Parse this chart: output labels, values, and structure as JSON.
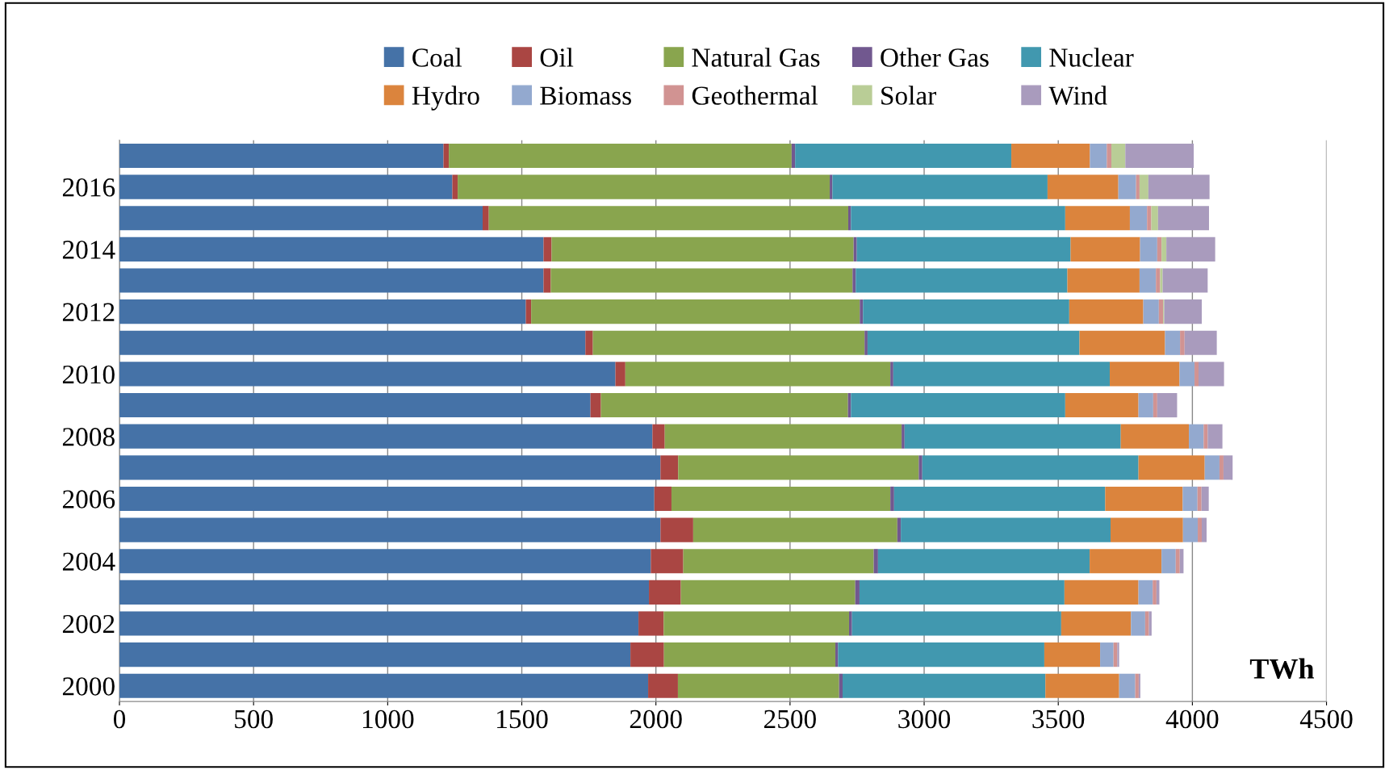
{
  "chart_data": {
    "type": "bar",
    "orientation": "horizontal",
    "stacked": true,
    "categories": [
      null,
      "2016",
      null,
      "2014",
      null,
      "2012",
      null,
      "2010",
      null,
      "2008",
      null,
      "2006",
      null,
      "2004",
      null,
      "2002",
      null,
      "2000"
    ],
    "series": [
      {
        "name": "Coal",
        "color": "#4572a7",
        "values": [
          1208,
          1241,
          1354,
          1581,
          1581,
          1515,
          1737,
          1849,
          1756,
          1987,
          2017,
          1994,
          2017,
          1981,
          1974,
          1935,
          1905,
          1971
        ]
      },
      {
        "name": "Oil",
        "color": "#aa4643",
        "values": [
          20,
          20,
          23,
          30,
          27,
          20,
          28,
          37,
          39,
          46,
          66,
          64,
          122,
          121,
          119,
          94,
          125,
          111
        ]
      },
      {
        "name": "Natural Gas",
        "color": "#89a54e",
        "values": [
          1278,
          1387,
          1340,
          1126,
          1125,
          1225,
          1013,
          988,
          921,
          883,
          897,
          816,
          761,
          710,
          650,
          691,
          639,
          601
        ]
      },
      {
        "name": "Other Gas",
        "color": "#71588f",
        "values": [
          13,
          10,
          10,
          12,
          12,
          12,
          11,
          11,
          11,
          11,
          13,
          14,
          13,
          16,
          16,
          11,
          10,
          13
        ]
      },
      {
        "name": "Nuclear",
        "color": "#4198af",
        "values": [
          806,
          802,
          799,
          797,
          789,
          769,
          790,
          807,
          799,
          806,
          806,
          787,
          782,
          789,
          764,
          780,
          769,
          756
        ]
      },
      {
        "name": "Hydro",
        "color": "#db843d",
        "values": [
          293,
          264,
          241,
          259,
          269,
          276,
          319,
          260,
          273,
          254,
          247,
          289,
          270,
          268,
          276,
          260,
          208,
          275
        ]
      },
      {
        "name": "Biomass",
        "color": "#93a9cf",
        "values": [
          63,
          66,
          64,
          64,
          61,
          58,
          56,
          56,
          55,
          55,
          55,
          55,
          55,
          53,
          53,
          53,
          50,
          60
        ]
      },
      {
        "name": "Geothermal",
        "color": "#d19392",
        "values": [
          17,
          13,
          16,
          16,
          16,
          16,
          17,
          15,
          15,
          15,
          15,
          15,
          15,
          15,
          14,
          14,
          14,
          13
        ]
      },
      {
        "name": "Solar",
        "color": "#b9cd96",
        "values": [
          52,
          33,
          25,
          18,
          9,
          4,
          null,
          null,
          null,
          null,
          0,
          0,
          0,
          0,
          0,
          0,
          0,
          0
        ]
      },
      {
        "name": "Wind",
        "color": "#a99bbd",
        "values": [
          255,
          228,
          190,
          182,
          168,
          140,
          120,
          95,
          74,
          55,
          34,
          27,
          18,
          14,
          11,
          10,
          7,
          6
        ]
      }
    ],
    "xlim": [
      0,
      4500
    ],
    "xticks": [
      0,
      500,
      1000,
      1500,
      2000,
      2500,
      3000,
      3500,
      4000,
      4500
    ],
    "grid": "x",
    "legend": "top",
    "annotations": [
      "TWh"
    ]
  }
}
